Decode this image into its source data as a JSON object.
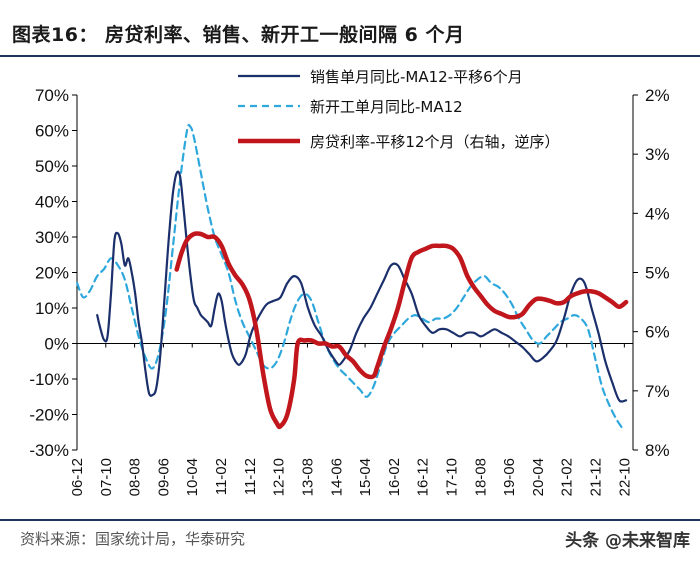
{
  "header": {
    "title": "图表16：  房贷利率、销售、新开工一般间隔 6 个月"
  },
  "footer": {
    "source": "资料来源：国家统计局，华泰研究",
    "watermark": "头条 @未来智库"
  },
  "colors": {
    "sales": "#1b2f6b",
    "starts": "#2ea8dc",
    "mortgage": "#c0161c",
    "rule": "#1b365d"
  },
  "chart_data": {
    "type": "line",
    "title": "房贷利率、销售、新开工一般间隔 6 个月",
    "left_axis": {
      "min": -0.3,
      "max": 0.7,
      "ticks": [
        "70%",
        "60%",
        "50%",
        "40%",
        "30%",
        "20%",
        "10%",
        "0%",
        "-10%",
        "-20%",
        "-30%"
      ],
      "tick_values": [
        0.7,
        0.6,
        0.5,
        0.4,
        0.3,
        0.2,
        0.1,
        0.0,
        -0.1,
        -0.2,
        -0.3
      ]
    },
    "right_axis": {
      "min": 0.02,
      "max": 0.08,
      "reversed": true,
      "ticks": [
        "2%",
        "3%",
        "4%",
        "5%",
        "6%",
        "7%",
        "8%"
      ],
      "tick_values": [
        0.02,
        0.03,
        0.04,
        0.05,
        0.06,
        0.07,
        0.08
      ]
    },
    "x_range": [
      2006.917,
      2023.0
    ],
    "x_ticks": [
      "06-12",
      "07-10",
      "08-08",
      "09-06",
      "10-04",
      "11-02",
      "11-12",
      "12-10",
      "13-08",
      "14-06",
      "15-04",
      "16-02",
      "16-12",
      "17-10",
      "18-08",
      "19-06",
      "20-04",
      "21-02",
      "21-12",
      "22-10"
    ],
    "x_tick_values": [
      2006.917,
      2007.75,
      2008.583,
      2009.417,
      2010.25,
      2011.083,
      2011.917,
      2012.75,
      2013.583,
      2014.417,
      2015.25,
      2016.083,
      2016.917,
      2017.75,
      2018.583,
      2019.417,
      2020.25,
      2021.083,
      2021.917,
      2022.75
    ],
    "legend_position": "top-right",
    "series": [
      {
        "name": "销售单月同比-MA12-平移6个月",
        "axis": "left",
        "style": "solid",
        "x": [
          2007.5,
          2007.6,
          2007.7,
          2007.8,
          2007.9,
          2008.0,
          2008.1,
          2008.2,
          2008.3,
          2008.4,
          2008.5,
          2008.6,
          2008.7,
          2008.8,
          2008.9,
          2009.0,
          2009.1,
          2009.2,
          2009.3,
          2009.4,
          2009.5,
          2009.6,
          2009.7,
          2009.8,
          2009.9,
          2010.0,
          2010.1,
          2010.2,
          2010.3,
          2010.4,
          2010.5,
          2010.6,
          2010.7,
          2010.8,
          2010.9,
          2011.0,
          2011.1,
          2011.2,
          2011.3,
          2011.4,
          2011.5,
          2011.6,
          2011.7,
          2011.8,
          2011.9,
          2012.0,
          2012.2,
          2012.4,
          2012.6,
          2012.8,
          2013.0,
          2013.2,
          2013.4,
          2013.6,
          2013.8,
          2014.0,
          2014.2,
          2014.4,
          2014.5,
          2014.6,
          2014.8,
          2015.0,
          2015.2,
          2015.4,
          2015.6,
          2015.8,
          2016.0,
          2016.2,
          2016.4,
          2016.6,
          2016.8,
          2017.0,
          2017.2,
          2017.4,
          2017.6,
          2017.8,
          2018.0,
          2018.2,
          2018.4,
          2018.6,
          2018.8,
          2019.0,
          2019.2,
          2019.4,
          2019.6,
          2019.8,
          2020.0,
          2020.2,
          2020.4,
          2020.6,
          2020.8,
          2021.0,
          2021.2,
          2021.4,
          2021.6,
          2021.8,
          2022.0,
          2022.2,
          2022.4,
          2022.6,
          2022.8
        ],
        "values": [
          0.08,
          0.04,
          0.01,
          0.02,
          0.14,
          0.29,
          0.31,
          0.28,
          0.22,
          0.24,
          0.2,
          0.14,
          0.06,
          0.0,
          -0.08,
          -0.14,
          -0.145,
          -0.13,
          -0.06,
          0.06,
          0.2,
          0.33,
          0.43,
          0.48,
          0.47,
          0.38,
          0.28,
          0.19,
          0.12,
          0.1,
          0.08,
          0.07,
          0.06,
          0.05,
          0.1,
          0.14,
          0.12,
          0.06,
          0.01,
          -0.03,
          -0.05,
          -0.06,
          -0.05,
          -0.03,
          0.01,
          0.04,
          0.08,
          0.11,
          0.12,
          0.13,
          0.17,
          0.19,
          0.17,
          0.1,
          0.05,
          0.02,
          -0.02,
          -0.05,
          -0.06,
          -0.05,
          -0.02,
          0.03,
          0.07,
          0.1,
          0.14,
          0.18,
          0.22,
          0.22,
          0.18,
          0.14,
          0.08,
          0.05,
          0.03,
          0.04,
          0.04,
          0.03,
          0.02,
          0.03,
          0.03,
          0.02,
          0.03,
          0.04,
          0.03,
          0.02,
          0.005,
          -0.01,
          -0.03,
          -0.05,
          -0.04,
          -0.02,
          0.01,
          0.07,
          0.14,
          0.18,
          0.17,
          0.1,
          0.03,
          -0.05,
          -0.11,
          -0.16,
          -0.16
        ],
        "note": "x values are decimal years (unscaled estimates) used only to spread the curve"
      },
      {
        "name": "新开工单月同比-MA12",
        "axis": "left",
        "style": "dashed",
        "x": [
          2006.92,
          2007.1,
          2007.3,
          2007.5,
          2007.7,
          2007.9,
          2008.1,
          2008.3,
          2008.5,
          2008.7,
          2008.9,
          2009.1,
          2009.3,
          2009.5,
          2009.7,
          2009.9,
          2010.1,
          2010.2,
          2010.3,
          2010.5,
          2010.7,
          2010.9,
          2011.1,
          2011.3,
          2011.5,
          2011.7,
          2011.9,
          2012.1,
          2012.3,
          2012.5,
          2012.7,
          2012.9,
          2013.1,
          2013.3,
          2013.5,
          2013.7,
          2013.9,
          2014.1,
          2014.3,
          2014.5,
          2014.7,
          2014.9,
          2015.1,
          2015.3,
          2015.5,
          2015.7,
          2015.9,
          2016.1,
          2016.3,
          2016.5,
          2016.7,
          2016.9,
          2017.1,
          2017.3,
          2017.5,
          2017.7,
          2017.9,
          2018.1,
          2018.3,
          2018.5,
          2018.7,
          2018.9,
          2019.1,
          2019.3,
          2019.5,
          2019.7,
          2019.9,
          2020.1,
          2020.3,
          2020.5,
          2020.7,
          2020.9,
          2021.1,
          2021.3,
          2021.5,
          2021.7,
          2021.9,
          2022.1,
          2022.3,
          2022.5,
          2022.7
        ],
        "values": [
          0.17,
          0.13,
          0.15,
          0.19,
          0.21,
          0.24,
          0.22,
          0.18,
          0.1,
          0.02,
          -0.04,
          -0.07,
          -0.02,
          0.1,
          0.28,
          0.46,
          0.6,
          0.61,
          0.58,
          0.48,
          0.38,
          0.3,
          0.25,
          0.2,
          0.12,
          0.06,
          0.02,
          -0.02,
          -0.06,
          -0.07,
          -0.05,
          0.0,
          0.07,
          0.12,
          0.14,
          0.12,
          0.06,
          0.0,
          -0.04,
          -0.07,
          -0.09,
          -0.11,
          -0.13,
          -0.15,
          -0.12,
          -0.06,
          0.0,
          0.03,
          0.05,
          0.07,
          0.08,
          0.07,
          0.06,
          0.07,
          0.07,
          0.08,
          0.1,
          0.13,
          0.16,
          0.18,
          0.19,
          0.17,
          0.16,
          0.14,
          0.11,
          0.07,
          0.04,
          0.01,
          0.0,
          0.02,
          0.04,
          0.06,
          0.07,
          0.08,
          0.07,
          0.04,
          -0.04,
          -0.12,
          -0.17,
          -0.21,
          -0.24
        ]
      },
      {
        "name": "房贷利率-平移12个月（右轴，逆序）",
        "axis": "right",
        "style": "solid-thick",
        "x": [
          2009.8,
          2009.95,
          2010.1,
          2010.3,
          2010.5,
          2010.7,
          2010.9,
          2011.1,
          2011.3,
          2011.5,
          2011.7,
          2011.9,
          2012.1,
          2012.3,
          2012.5,
          2012.7,
          2012.8,
          2013.0,
          2013.2,
          2013.3,
          2013.5,
          2013.7,
          2013.9,
          2014.1,
          2014.3,
          2014.5,
          2014.7,
          2014.9,
          2015.1,
          2015.3,
          2015.5,
          2015.6,
          2015.8,
          2016.0,
          2016.2,
          2016.4,
          2016.6,
          2016.8,
          2017.0,
          2017.2,
          2017.4,
          2017.6,
          2017.8,
          2018.0,
          2018.2,
          2018.4,
          2018.6,
          2018.8,
          2019.0,
          2019.2,
          2019.4,
          2019.6,
          2019.8,
          2020.0,
          2020.2,
          2020.4,
          2020.6,
          2020.8,
          2021.0,
          2021.2,
          2021.4,
          2021.6,
          2021.8,
          2022.0,
          2022.2,
          2022.4,
          2022.6,
          2022.8
        ],
        "values": [
          0.0495,
          0.0465,
          0.0445,
          0.0435,
          0.0435,
          0.044,
          0.044,
          0.0455,
          0.0485,
          0.0505,
          0.052,
          0.0545,
          0.0595,
          0.067,
          0.073,
          0.0755,
          0.076,
          0.074,
          0.068,
          0.062,
          0.0615,
          0.0615,
          0.062,
          0.062,
          0.0625,
          0.0625,
          0.064,
          0.065,
          0.0665,
          0.0675,
          0.0675,
          0.066,
          0.0625,
          0.0595,
          0.056,
          0.0515,
          0.0475,
          0.0465,
          0.046,
          0.0455,
          0.0455,
          0.0455,
          0.046,
          0.0475,
          0.0505,
          0.0525,
          0.054,
          0.0555,
          0.0565,
          0.057,
          0.0575,
          0.0575,
          0.057,
          0.0555,
          0.0545,
          0.0545,
          0.0548,
          0.0552,
          0.055,
          0.054,
          0.0535,
          0.0532,
          0.0532,
          0.0535,
          0.0542,
          0.055,
          0.0558,
          0.055
        ]
      }
    ]
  }
}
